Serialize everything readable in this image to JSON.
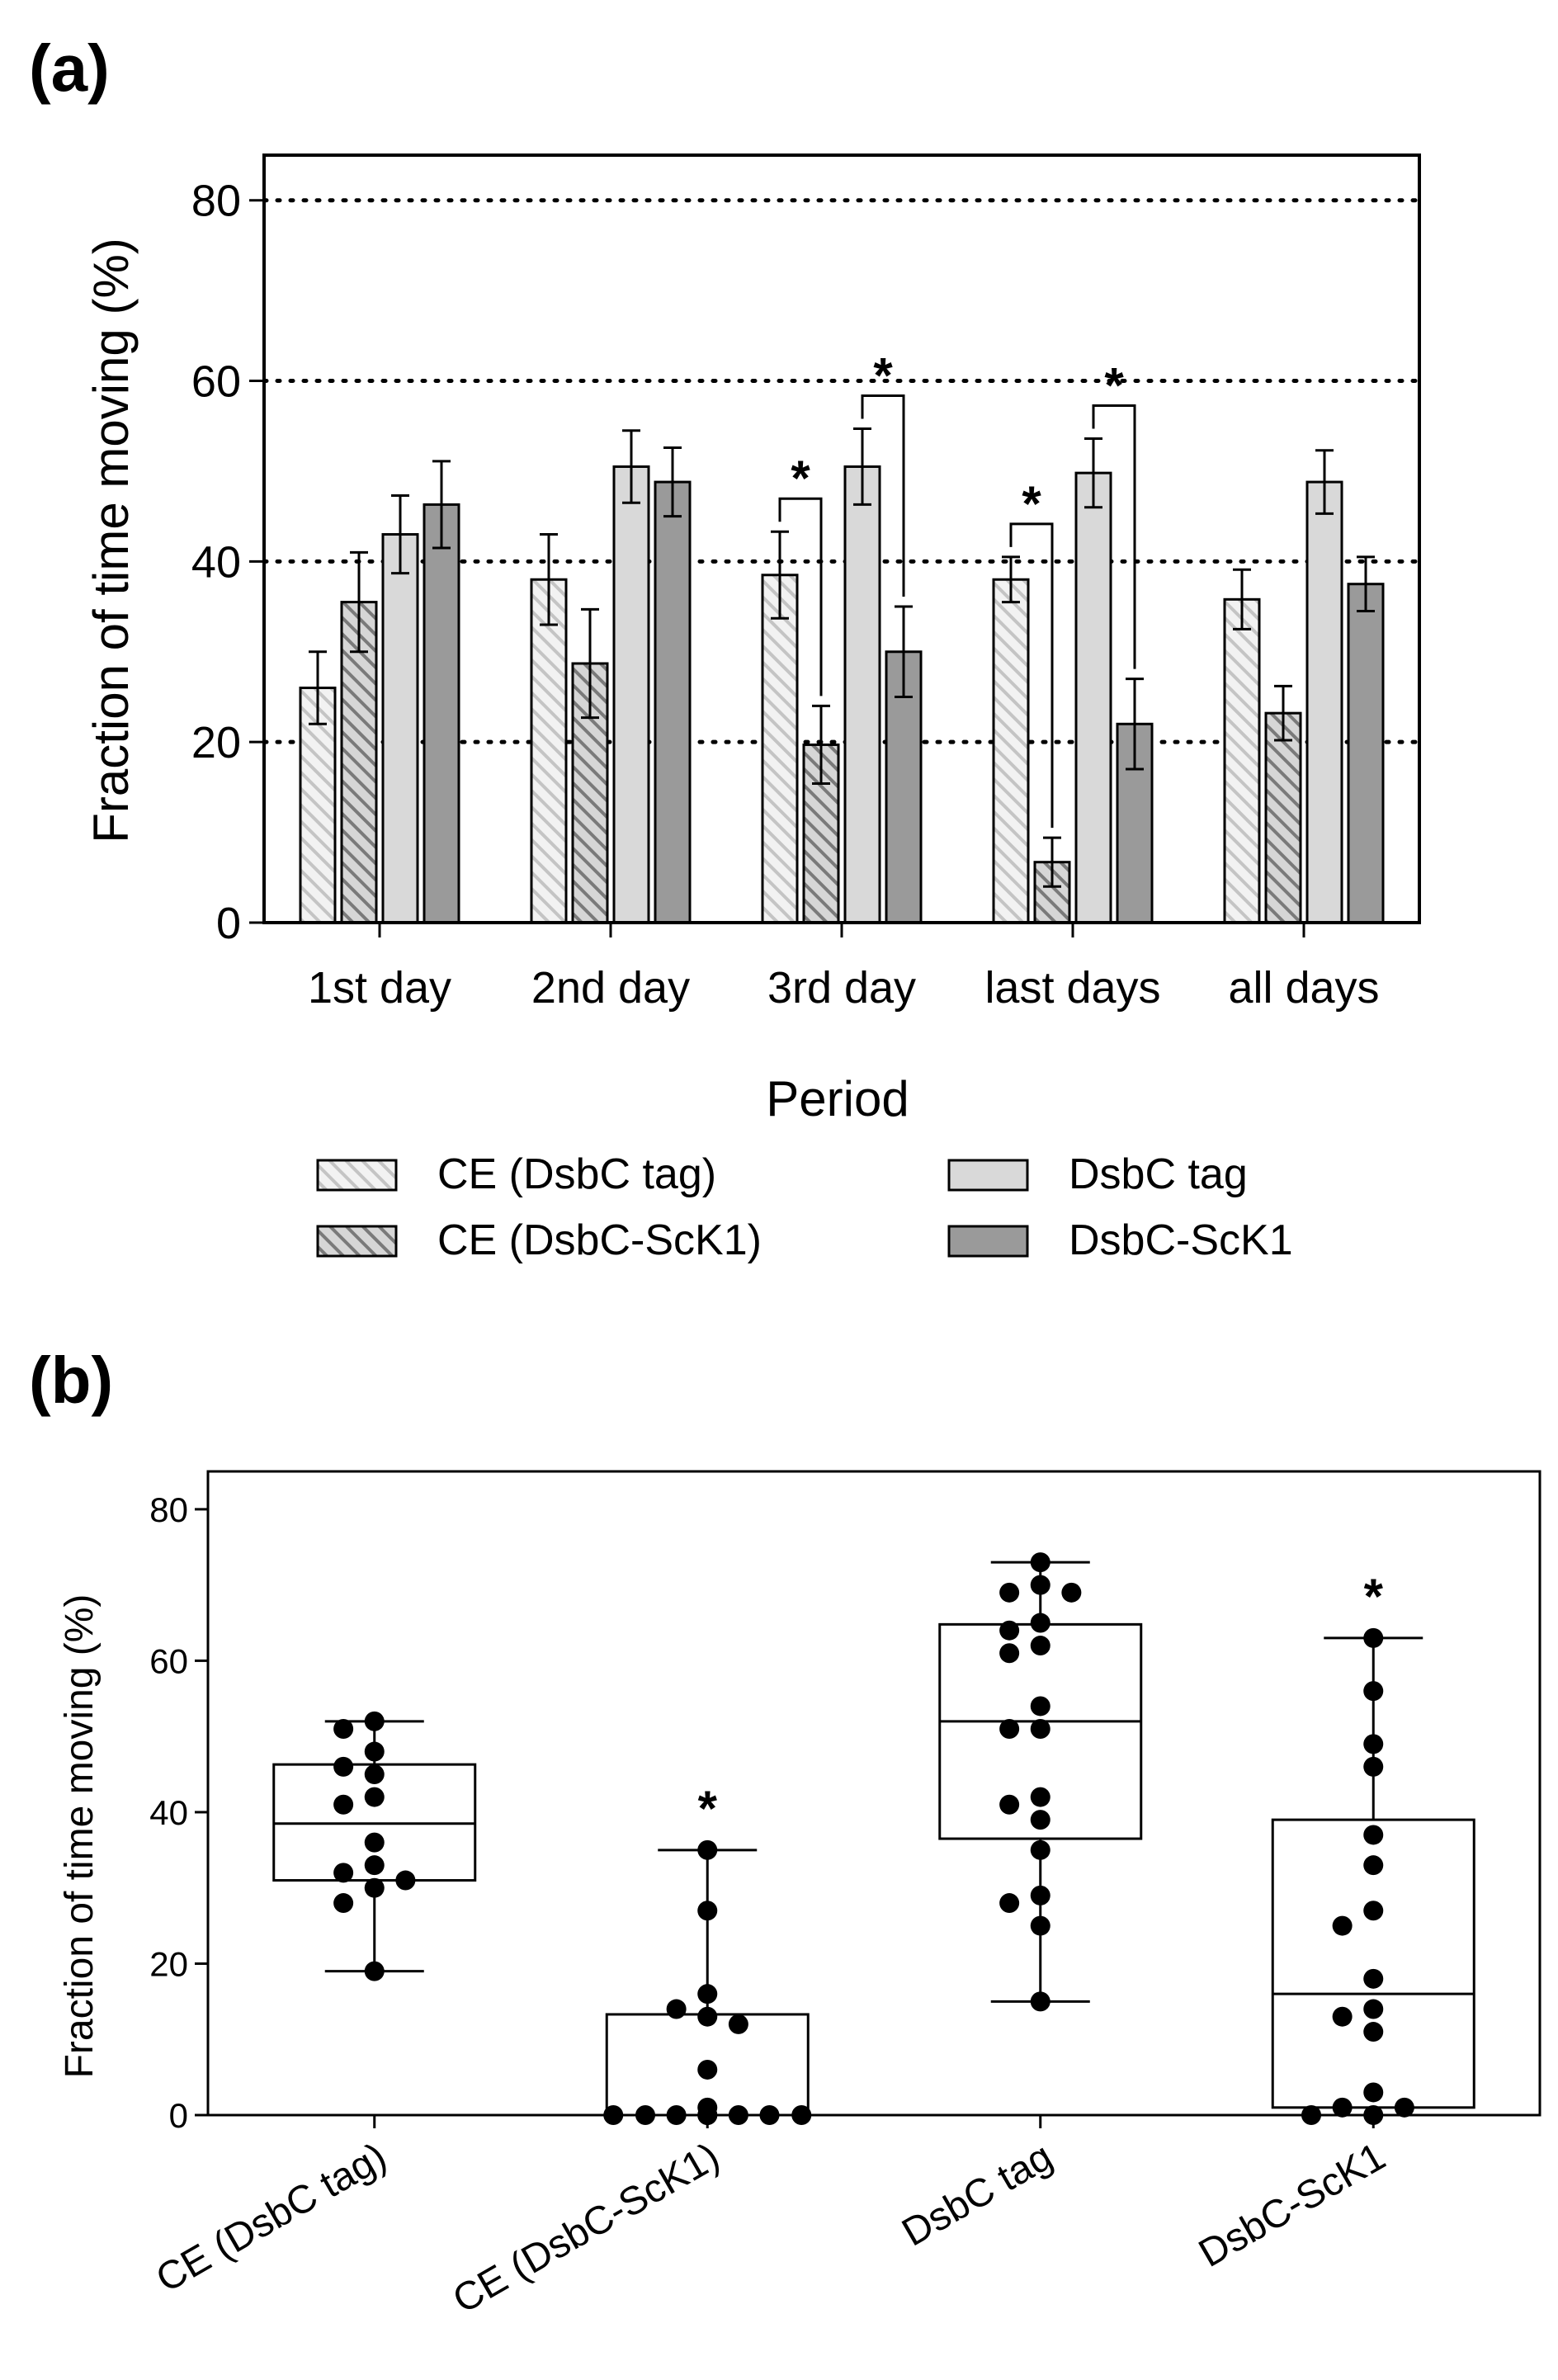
{
  "chart_data": [
    {
      "panel_label": "(a)",
      "type": "bar",
      "xlabel": "Period",
      "ylabel": "Fraction of time moving (%)",
      "ylim": [
        0,
        85
      ],
      "yticks": [
        0,
        20,
        40,
        60,
        80
      ],
      "grid_lines": [
        20,
        40,
        60,
        80
      ],
      "categories": [
        "1st day",
        "2nd day",
        "3rd day",
        "last days",
        "all days"
      ],
      "series": [
        {
          "name": "CE (DsbC tag)",
          "color": "#e6e6e6",
          "pattern": "hatch-light",
          "values": [
            26,
            38,
            38.5,
            38,
            35.8
          ],
          "errors": [
            4,
            5,
            4.8,
            2.5,
            3.3
          ]
        },
        {
          "name": "CE (DsbC-ScK1)",
          "color": "#a6a6a6",
          "pattern": "hatch-dark",
          "values": [
            35.5,
            28.7,
            19.7,
            6.7,
            23.2
          ],
          "errors": [
            5.5,
            6,
            4.3,
            2.7,
            3
          ]
        },
        {
          "name": "DsbC tag",
          "color": "#d9d9d9",
          "pattern": "solid",
          "values": [
            43,
            50.5,
            50.5,
            49.8,
            48.8
          ],
          "errors": [
            4.3,
            4,
            4.2,
            3.8,
            3.5
          ]
        },
        {
          "name": "DsbC-ScK1",
          "color": "#9a9a9a",
          "pattern": "solid",
          "values": [
            46.3,
            48.8,
            30,
            22,
            37.5
          ],
          "errors": [
            4.8,
            3.8,
            5,
            5,
            3
          ]
        }
      ],
      "significance": [
        {
          "category": "3rd day",
          "from": "CE (DsbC tag)",
          "to": "CE (DsbC-ScK1)",
          "label": "*"
        },
        {
          "category": "3rd day",
          "from": "DsbC tag",
          "to": "DsbC-ScK1",
          "label": "*"
        },
        {
          "category": "last days",
          "from": "CE (DsbC tag)",
          "to": "CE (DsbC-ScK1)",
          "label": "*"
        },
        {
          "category": "last days",
          "from": "DsbC tag",
          "to": "DsbC-ScK1",
          "label": "*"
        }
      ],
      "legend_placement": "bottom"
    },
    {
      "panel_label": "(b)",
      "type": "box",
      "ylabel": "Fraction of time moving (%)",
      "ylim": [
        0,
        85
      ],
      "yticks": [
        0,
        20,
        40,
        60,
        80
      ],
      "categories": [
        "CE (DsbC tag)",
        "CE (DsbC-ScK1)",
        "DsbC tag",
        "DsbC-ScK1"
      ],
      "boxes": [
        {
          "min": 19,
          "q1": 31,
          "median": 38.5,
          "q3": 46.3,
          "max": 52,
          "significance": "",
          "points": [
            52,
            51,
            48,
            46,
            45,
            42,
            41,
            36,
            33,
            32,
            31,
            30,
            28,
            19
          ]
        },
        {
          "min": 0,
          "q1": 0,
          "median": 0,
          "q3": 13.3,
          "max": 35,
          "significance": "*",
          "points": [
            35,
            27,
            16,
            14,
            13,
            12,
            6,
            1,
            0,
            0,
            0,
            0,
            0,
            0,
            0,
            0,
            0
          ]
        },
        {
          "min": 15,
          "q1": 36.5,
          "median": 52,
          "q3": 64.8,
          "max": 73,
          "significance": "",
          "points": [
            73,
            70,
            69,
            69,
            65,
            64,
            62,
            61,
            54,
            51,
            51,
            42,
            41,
            39,
            35,
            29,
            28,
            25,
            15
          ]
        },
        {
          "min": 0,
          "q1": 1,
          "median": 16,
          "q3": 39,
          "max": 63,
          "significance": "*",
          "points": [
            63,
            56,
            49,
            46,
            37,
            33,
            27,
            25,
            18,
            14,
            13,
            11,
            3,
            1,
            1,
            0,
            0
          ]
        }
      ]
    }
  ]
}
